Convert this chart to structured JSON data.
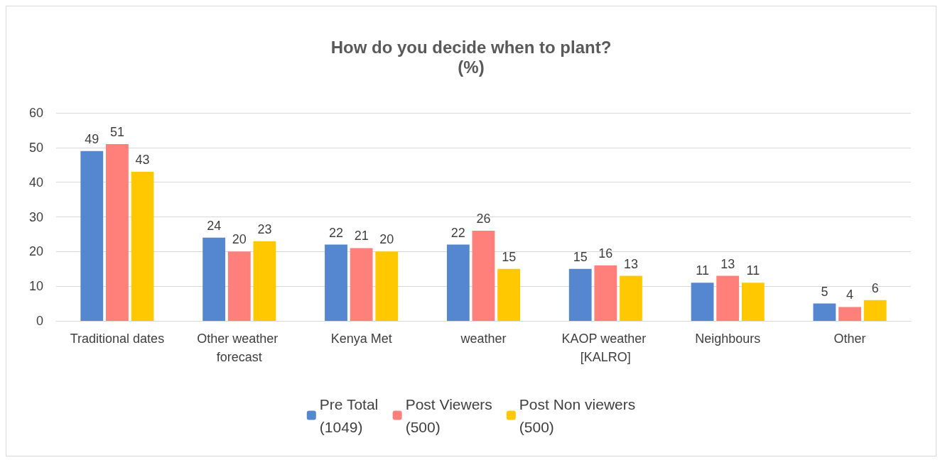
{
  "chart_data": {
    "type": "bar",
    "title": "How do you decide when to plant?",
    "subtitle": "(%)",
    "categories": [
      "Traditional dates",
      "Other weather forecast",
      "Kenya Met",
      "weather",
      "KAOP weather [KALRO]",
      "Neighbours",
      "Other"
    ],
    "series": [
      {
        "name": "Pre Total\n(1049)",
        "color": "#5586d0",
        "values": [
          49,
          24,
          22,
          22,
          15,
          11,
          5
        ]
      },
      {
        "name": "Post Viewers\n(500)",
        "color": "#ff7f7a",
        "values": [
          51,
          20,
          21,
          26,
          16,
          13,
          4
        ]
      },
      {
        "name": "Post Non viewers\n(500)",
        "color": "#ffc800",
        "values": [
          43,
          23,
          20,
          15,
          13,
          11,
          6
        ]
      }
    ],
    "ylim": [
      0,
      60
    ],
    "yticks": [
      0,
      10,
      20,
      30,
      40,
      50,
      60
    ],
    "grid": "y",
    "legend": "bottom",
    "data_labels": true
  }
}
